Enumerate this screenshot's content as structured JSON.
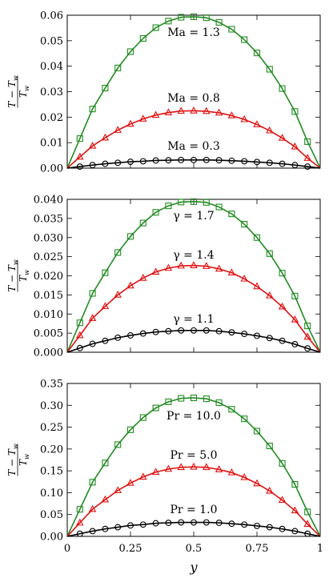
{
  "chart_data": [
    {
      "type": "line",
      "ylabel": "(T − T_w) / T_w",
      "ylim": [
        0,
        0.06
      ],
      "yticks": [
        0.0,
        0.01,
        0.02,
        0.03,
        0.04,
        0.05,
        0.06
      ],
      "ytick_labels": [
        "0.00",
        "0.01",
        "0.02",
        "0.03",
        "0.04",
        "0.05",
        "0.06"
      ],
      "xlim": [
        0,
        1
      ],
      "xticks": [
        0,
        0.25,
        0.5,
        0.75,
        1
      ],
      "x": [
        0.0,
        0.05,
        0.1,
        0.15,
        0.2,
        0.25,
        0.3,
        0.35,
        0.4,
        0.45,
        0.5,
        0.55,
        0.6,
        0.65,
        0.7,
        0.75,
        0.8,
        0.85,
        0.9,
        0.95,
        1.0
      ],
      "series": [
        {
          "name": "Ma = 1.3",
          "color": "#228B22",
          "marker": "square",
          "peak": 0.0595,
          "values": [
            0.0,
            0.0116,
            0.0232,
            0.0314,
            0.0393,
            0.0457,
            0.0509,
            0.0551,
            0.0577,
            0.0592,
            0.0594,
            0.059,
            0.0572,
            0.0545,
            0.0504,
            0.0452,
            0.0388,
            0.0312,
            0.0222,
            0.0104,
            0.0
          ]
        },
        {
          "name": "Ma = 0.8",
          "color": "#e01010",
          "marker": "triangle",
          "peak": 0.0225,
          "values": [
            0.0,
            0.0044,
            0.0087,
            0.0119,
            0.0149,
            0.0173,
            0.0193,
            0.0208,
            0.0218,
            0.0224,
            0.0225,
            0.0223,
            0.0217,
            0.0206,
            0.0191,
            0.0171,
            0.0147,
            0.0118,
            0.0084,
            0.0039,
            0.0
          ]
        },
        {
          "name": "Ma = 0.3",
          "color": "#000000",
          "marker": "circle",
          "peak": 0.0032,
          "values": [
            0.0,
            0.0006,
            0.0012,
            0.0017,
            0.0021,
            0.0025,
            0.0027,
            0.003,
            0.0031,
            0.0032,
            0.0032,
            0.0032,
            0.0031,
            0.0029,
            0.0027,
            0.0024,
            0.0021,
            0.0017,
            0.0012,
            0.0006,
            0.0
          ]
        }
      ]
    },
    {
      "type": "line",
      "ylabel": "(T − T_w) / T_w",
      "ylim": [
        0,
        0.04
      ],
      "yticks": [
        0.0,
        0.005,
        0.01,
        0.015,
        0.02,
        0.025,
        0.03,
        0.035,
        0.04
      ],
      "ytick_labels": [
        "0.000",
        "0.005",
        "0.010",
        "0.015",
        "0.020",
        "0.025",
        "0.030",
        "0.035",
        "0.040"
      ],
      "xlim": [
        0,
        1
      ],
      "xticks": [
        0,
        0.25,
        0.5,
        0.75,
        1
      ],
      "x": [
        0.0,
        0.05,
        0.1,
        0.15,
        0.2,
        0.25,
        0.3,
        0.35,
        0.4,
        0.45,
        0.5,
        0.55,
        0.6,
        0.65,
        0.7,
        0.75,
        0.8,
        0.85,
        0.9,
        0.95,
        1.0
      ],
      "series": [
        {
          "name": "γ = 1.7",
          "color": "#228B22",
          "marker": "square",
          "peak": 0.0395,
          "values": [
            0.0,
            0.0077,
            0.0154,
            0.0208,
            0.0261,
            0.0303,
            0.0338,
            0.0366,
            0.0383,
            0.0393,
            0.0394,
            0.0392,
            0.038,
            0.0362,
            0.0335,
            0.03,
            0.0258,
            0.0207,
            0.0147,
            0.0069,
            0.0
          ]
        },
        {
          "name": "γ = 1.4",
          "color": "#e01010",
          "marker": "triangle",
          "peak": 0.0227,
          "values": [
            0.0,
            0.0044,
            0.0089,
            0.012,
            0.015,
            0.0174,
            0.0194,
            0.021,
            0.022,
            0.0226,
            0.0227,
            0.0225,
            0.0218,
            0.0208,
            0.0192,
            0.0172,
            0.0148,
            0.0119,
            0.0085,
            0.004,
            0.0
          ]
        },
        {
          "name": "γ = 1.1",
          "color": "#000000",
          "marker": "circle",
          "peak": 0.0057,
          "values": [
            0.0,
            0.0011,
            0.0022,
            0.003,
            0.0038,
            0.0044,
            0.0049,
            0.0053,
            0.0055,
            0.0057,
            0.0057,
            0.0057,
            0.0055,
            0.0052,
            0.0048,
            0.0043,
            0.0037,
            0.003,
            0.0021,
            0.001,
            0.0
          ]
        }
      ]
    },
    {
      "type": "line",
      "ylabel": "(T − T_w) / T_w",
      "xlabel": "y",
      "ylim": [
        0,
        0.35
      ],
      "yticks": [
        0.0,
        0.05,
        0.1,
        0.15,
        0.2,
        0.25,
        0.3,
        0.35
      ],
      "ytick_labels": [
        "0.00",
        "0.05",
        "0.10",
        "0.15",
        "0.20",
        "0.25",
        "0.30",
        "0.35"
      ],
      "xlim": [
        0,
        1
      ],
      "xticks": [
        0,
        0.25,
        0.5,
        0.75,
        1
      ],
      "xtick_labels": [
        "0",
        "0.25",
        "0.5",
        "0.75",
        "1"
      ],
      "x": [
        0.0,
        0.05,
        0.1,
        0.15,
        0.2,
        0.25,
        0.3,
        0.35,
        0.4,
        0.45,
        0.5,
        0.55,
        0.6,
        0.65,
        0.7,
        0.75,
        0.8,
        0.85,
        0.9,
        0.95,
        1.0
      ],
      "series": [
        {
          "name": "Pr = 10.0",
          "color": "#228B22",
          "marker": "square",
          "peak": 0.318,
          "values": [
            0.0,
            0.062,
            0.124,
            0.168,
            0.21,
            0.244,
            0.272,
            0.294,
            0.308,
            0.316,
            0.317,
            0.315,
            0.306,
            0.291,
            0.269,
            0.241,
            0.207,
            0.167,
            0.119,
            0.056,
            0.0
          ]
        },
        {
          "name": "Pr = 5.0",
          "color": "#e01010",
          "marker": "triangle",
          "peak": 0.159,
          "values": [
            0.0,
            0.031,
            0.062,
            0.084,
            0.105,
            0.122,
            0.136,
            0.147,
            0.154,
            0.158,
            0.159,
            0.158,
            0.153,
            0.146,
            0.135,
            0.121,
            0.104,
            0.083,
            0.059,
            0.028,
            0.0
          ]
        },
        {
          "name": "Pr = 1.0",
          "color": "#000000",
          "marker": "circle",
          "peak": 0.032,
          "values": [
            0.0,
            0.006,
            0.012,
            0.017,
            0.021,
            0.025,
            0.027,
            0.03,
            0.031,
            0.032,
            0.032,
            0.032,
            0.031,
            0.029,
            0.027,
            0.024,
            0.021,
            0.017,
            0.012,
            0.006,
            0.0
          ]
        }
      ]
    }
  ]
}
